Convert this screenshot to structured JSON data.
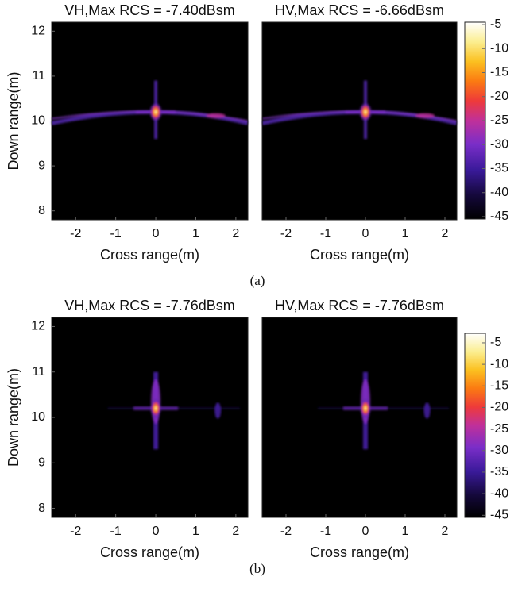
{
  "chart_data": [
    {
      "type": "heatmap",
      "title": "VH,Max RCS = -7.40dBsm",
      "xlabel": "Cross range(m)",
      "ylabel": "Down range(m)",
      "xlim": [
        -2.6,
        2.3
      ],
      "xticks": [
        -2,
        -1,
        0,
        1,
        2
      ],
      "ylim": [
        7.8,
        12.2
      ],
      "yticks": [
        8,
        9,
        10,
        11,
        12
      ]
    },
    {
      "type": "heatmap",
      "title": "HV,Max RCS = -6.66dBsm",
      "xlabel": "Cross range(m)",
      "xlim": [
        -2.6,
        2.3
      ],
      "xticks": [
        -2,
        -1,
        0,
        1,
        2
      ],
      "ylim": [
        7.8,
        12.2
      ],
      "colorbar": {
        "lim": [
          -45.5,
          -4.5
        ],
        "ticks": [
          -5,
          -10,
          -15,
          -20,
          -25,
          -30,
          -35,
          -40,
          -45
        ]
      }
    },
    {
      "type": "heatmap",
      "title": "VH,Max RCS = -7.76dBsm",
      "xlabel": "Cross range(m)",
      "ylabel": "Down range(m)",
      "xlim": [
        -2.6,
        2.3
      ],
      "xticks": [
        -2,
        -1,
        0,
        1,
        2
      ],
      "ylim": [
        7.8,
        12.2
      ],
      "yticks": [
        8,
        9,
        10,
        11,
        12
      ]
    },
    {
      "type": "heatmap",
      "title": "HV,Max RCS = -7.76dBsm",
      "xlabel": "Cross range(m)",
      "xlim": [
        -2.6,
        2.3
      ],
      "xticks": [
        -2,
        -1,
        0,
        1,
        2
      ],
      "ylim": [
        7.8,
        12.2
      ],
      "colorbar": {
        "lim": [
          -45.5,
          -2.8
        ],
        "ticks": [
          -5,
          -10,
          -15,
          -20,
          -25,
          -30,
          -35,
          -40,
          -45
        ]
      }
    }
  ],
  "captions": [
    "(a)",
    "(b)"
  ]
}
